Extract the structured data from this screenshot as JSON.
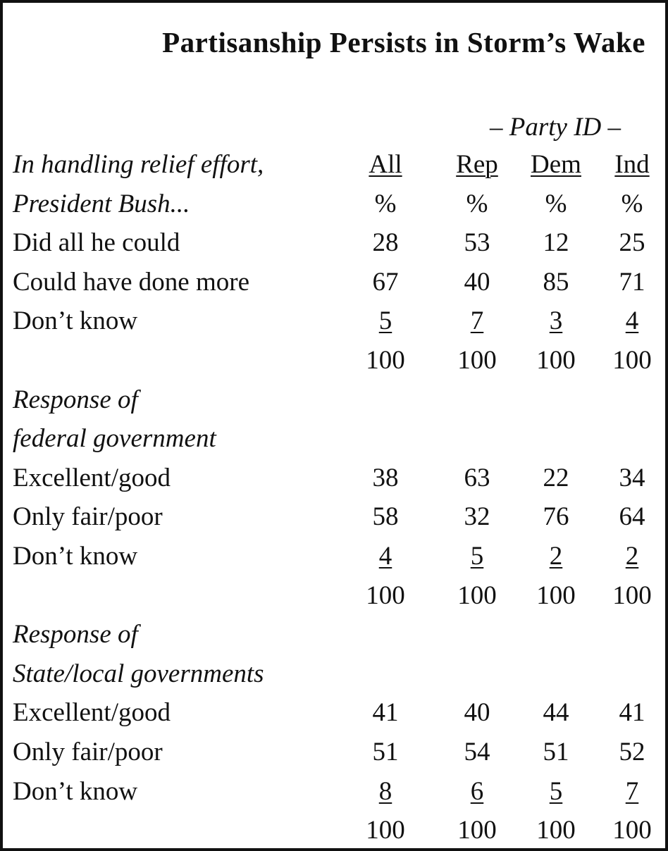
{
  "chart_data": {
    "type": "table",
    "title": "Partisanship Persists in Storm’s Wake",
    "group_header": "– Party ID –",
    "columns": [
      "All",
      "Rep",
      "Dem",
      "Ind"
    ],
    "unit_row": [
      "%",
      "%",
      "%",
      "%"
    ],
    "sections": [
      {
        "heading": [
          "In handling relief effort,",
          "President Bush..."
        ],
        "rows": [
          {
            "label": "Did all he could",
            "values": [
              28,
              53,
              12,
              25
            ]
          },
          {
            "label": "Could have done more",
            "values": [
              67,
              40,
              85,
              71
            ]
          },
          {
            "label": "Don’t know",
            "values": [
              5,
              7,
              3,
              4
            ]
          }
        ],
        "totals": [
          100,
          100,
          100,
          100
        ]
      },
      {
        "heading": [
          "Response of",
          "federal government"
        ],
        "rows": [
          {
            "label": "Excellent/good",
            "values": [
              38,
              63,
              22,
              34
            ]
          },
          {
            "label": "Only fair/poor",
            "values": [
              58,
              32,
              76,
              64
            ]
          },
          {
            "label": "Don’t know",
            "values": [
              4,
              5,
              2,
              2
            ]
          }
        ],
        "totals": [
          100,
          100,
          100,
          100
        ]
      },
      {
        "heading": [
          "Response of",
          "State/local governments"
        ],
        "rows": [
          {
            "label": "Excellent/good",
            "values": [
              41,
              40,
              44,
              41
            ]
          },
          {
            "label": "Only fair/poor",
            "values": [
              51,
              54,
              51,
              52
            ]
          },
          {
            "label": "Don’t know",
            "values": [
              8,
              6,
              5,
              7
            ]
          }
        ],
        "totals": [
          100,
          100,
          100,
          100
        ]
      }
    ]
  }
}
